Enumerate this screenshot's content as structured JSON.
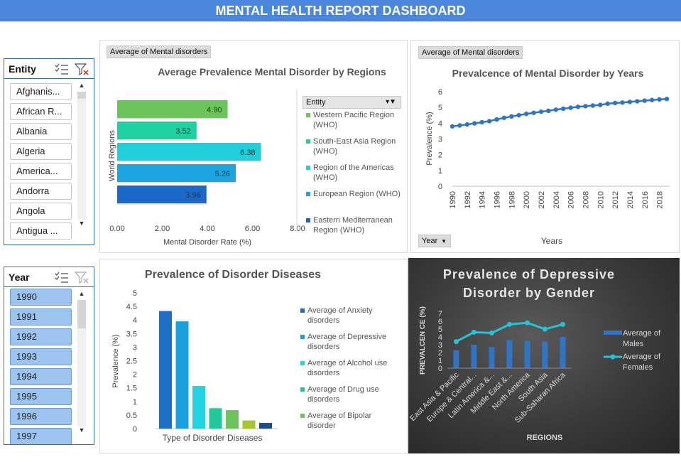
{
  "header": {
    "title": "MENTAL HEALTH REPORT DASHBOARD"
  },
  "slicers": {
    "entity": {
      "title": "Entity",
      "items": [
        "Afghanis...",
        "African R...",
        "Albania",
        "Algeria",
        "America...",
        "Andorra",
        "Angola",
        "Antigua ..."
      ]
    },
    "year": {
      "title": "Year",
      "items": [
        "1990",
        "1991",
        "1992",
        "1993",
        "1994",
        "1995",
        "1996",
        "1997"
      ]
    }
  },
  "charts": {
    "regions": {
      "field_button": "Average of Mental disorders",
      "legend_field_button": "Entity"
    },
    "years": {
      "field_button": "Average of Mental disorders",
      "axis_field_button": "Year"
    }
  },
  "colors": {
    "header": "#4a86dc",
    "blue_line": "#2e75c6",
    "teal_line": "#22c4d6"
  },
  "chart_data": [
    {
      "type": "bar",
      "orientation": "horizontal",
      "title": "Average Prevalence Mental Disorder by Regions",
      "xlabel": "Mental Disorder Rate (%)",
      "ylabel": "World Regions",
      "xlim": [
        0,
        8
      ],
      "xticks": [
        "0.00",
        "2.00",
        "4.00",
        "6.00",
        "8.00"
      ],
      "categories": [
        "Western Pacific Region (WHO)",
        "South-East Asia Region (WHO)",
        "Region of the Americas (WHO)",
        "European Region (WHO)",
        "Eastern Mediterranean Region (WHO)"
      ],
      "values": [
        4.9,
        3.52,
        6.38,
        5.26,
        3.96
      ],
      "value_labels": [
        "4.90",
        "3.52",
        "6.38",
        "5.26",
        "3.96"
      ],
      "colors": [
        "#6cc55a",
        "#1ed1a0",
        "#1fd0dc",
        "#1ba6e0",
        "#1a68c7"
      ],
      "legend": [
        "Western Pacific Region (WHO)",
        "South-East Asia Region (WHO)",
        "Region of the Americas (WHO)",
        "European Region (WHO)",
        "Eastern Mediterranean Region (WHO)"
      ],
      "legend_placement": "right"
    },
    {
      "type": "line",
      "title": "Prevalcence of Mental Disorder by Years",
      "xlabel": "Years",
      "ylabel": "Prevalence (%)",
      "ylim": [
        0,
        6
      ],
      "yticks": [
        "0",
        "1",
        "2",
        "3",
        "4",
        "5",
        "6"
      ],
      "x": [
        1990,
        1991,
        1992,
        1993,
        1994,
        1995,
        1996,
        1997,
        1998,
        1999,
        2000,
        2001,
        2002,
        2003,
        2004,
        2005,
        2006,
        2007,
        2008,
        2009,
        2010,
        2011,
        2012,
        2013,
        2014,
        2015,
        2016,
        2017,
        2018,
        2019
      ],
      "xticks": [
        "1990",
        "1992",
        "1994",
        "1996",
        "1998",
        "2000",
        "2002",
        "2004",
        "2006",
        "2008",
        "2010",
        "2012",
        "2014",
        "2016",
        "2018"
      ],
      "values": [
        3.8,
        3.86,
        3.92,
        3.99,
        4.06,
        4.13,
        4.24,
        4.34,
        4.43,
        4.51,
        4.59,
        4.66,
        4.73,
        4.79,
        4.86,
        4.92,
        4.98,
        5.04,
        5.08,
        5.12,
        5.16,
        5.24,
        5.28,
        5.31,
        5.35,
        5.39,
        5.43,
        5.47,
        5.51,
        5.54
      ],
      "grid": false
    },
    {
      "type": "bar",
      "title": "Prevalence of Disorder Diseases",
      "xlabel": "Type of Disorder Diseases",
      "ylabel": "Prevalence  (%)",
      "ylim": [
        0,
        5
      ],
      "yticks": [
        "0",
        "0.5",
        "1",
        "1.5",
        "2",
        "2.5",
        "3",
        "3.5",
        "4",
        "4.5",
        "5"
      ],
      "series": [
        {
          "name": "Average of Anxiety disorders",
          "value": 4.33,
          "color": "#1c6fc4"
        },
        {
          "name": "Average of  Depressive disorders",
          "value": 3.95,
          "color": "#1aa0dd"
        },
        {
          "name": "Average of Alcohol use disorders",
          "value": 1.57,
          "color": "#1fd3e0"
        },
        {
          "name": "Average of Drug use disorders",
          "value": 0.75,
          "color": "#1fc79a"
        },
        {
          "name": "Average of Bipolar disorder",
          "value": 0.68,
          "color": "#6cc55a"
        },
        {
          "name": "",
          "value": 0.3,
          "color": "#a7c52e"
        },
        {
          "name": "",
          "value": 0.21,
          "color": "#1c4c8c"
        }
      ],
      "legend_placement": "right"
    },
    {
      "type": "bar",
      "title": "Prevalence of Depressive Disorder by Gender",
      "xlabel": "REGIONS",
      "ylabel": "PREVALCEN CE (%)",
      "ylim": [
        0,
        7
      ],
      "yticks": [
        "0",
        "1",
        "2",
        "3",
        "4",
        "5",
        "6",
        "7"
      ],
      "categories": [
        "East Asia & Pacific",
        "Europe & Central...",
        "Latin America &...",
        "Middle East &...",
        "North America",
        "South Asia",
        "Sub-Saharan Africa"
      ],
      "series": [
        {
          "name": "Average of Males",
          "type": "bar",
          "values": [
            2.3,
            3.0,
            2.7,
            3.6,
            3.5,
            3.4,
            4.0
          ],
          "color": "#2e75c6"
        },
        {
          "name": "Average of Females",
          "type": "line",
          "values": [
            3.4,
            4.6,
            4.5,
            5.6,
            5.8,
            5.0,
            5.6
          ],
          "color": "#22c4d6"
        }
      ],
      "legend_placement": "right"
    }
  ]
}
